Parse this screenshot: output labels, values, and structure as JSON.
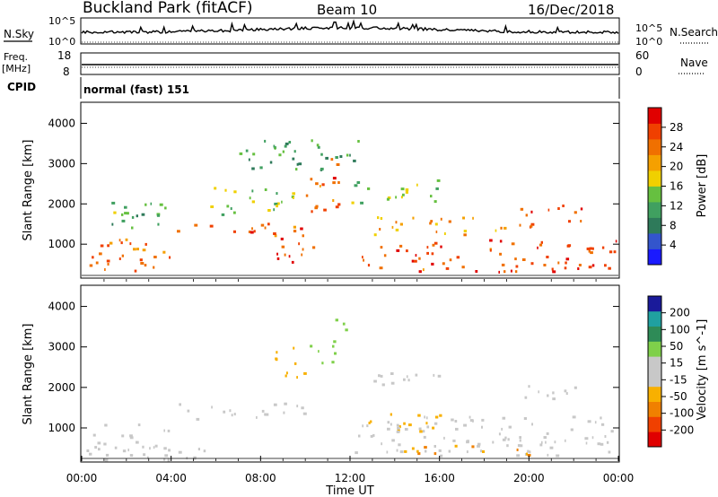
{
  "header": {
    "station": "Buckland Park (fitACF)",
    "beam": "Beam 10",
    "date": "16/Dec/2018"
  },
  "panels": {
    "nsky_label": "N.Sky",
    "nsky_ticks": [
      "10^5",
      "10^0"
    ],
    "nsearch_label": "N.Search",
    "nsearch_ticks": [
      "10^5",
      "10^0"
    ],
    "freq_label": "Freq.",
    "freq_unit": "[MHz]",
    "freq_ticks": [
      "18",
      "8"
    ],
    "nave_label": "Nave",
    "nave_ticks": [
      "60",
      "0"
    ],
    "cpid_label": "CPID",
    "cpid_text": "normal (fast) 151"
  },
  "colors": {
    "power": [
      "#1a1aff",
      "#3355cc",
      "#2e7a5a",
      "#40a060",
      "#66c040",
      "#f0d000",
      "#f5a000",
      "#f07000",
      "#f04000",
      "#e00000"
    ],
    "velocity": [
      "#e00000",
      "#f04000",
      "#f08000",
      "#f8b000",
      "#c8c8c8",
      "#c8c8c8",
      "#7fd04a",
      "#2e8b57",
      "#20a0a0",
      "#1a1a9a"
    ],
    "background": "#ffffff"
  },
  "chart_data": [
    {
      "type": "heatmap",
      "panel": "power",
      "ylabel": "Slant Range [km]",
      "y_ticks": [
        "1000",
        "2000",
        "3000",
        "4000"
      ],
      "ylim": [
        180,
        4500
      ],
      "xlim": [
        "00:00",
        "24:00"
      ],
      "colorbar": {
        "label": "Power [dB]",
        "ticks": [
          "4",
          "8",
          "12",
          "16",
          "20",
          "24",
          "28"
        ],
        "range": [
          0,
          32
        ]
      },
      "bands": [
        {
          "t0": 0.0,
          "t1": 4.0,
          "r0": 250,
          "r1": 1150,
          "v": 24
        },
        {
          "t0": 1.0,
          "t1": 4.5,
          "r0": 1400,
          "r1": 2100,
          "v": 12
        },
        {
          "t0": 4.0,
          "t1": 10.0,
          "r0": 1200,
          "r1": 1500,
          "v": 25
        },
        {
          "t0": 5.5,
          "t1": 9.5,
          "r0": 1700,
          "r1": 2400,
          "v": 15
        },
        {
          "t0": 8.5,
          "t1": 10.5,
          "r0": 500,
          "r1": 1400,
          "v": 27
        },
        {
          "t0": 10.0,
          "t1": 11.5,
          "r0": 1800,
          "r1": 3300,
          "v": 26
        },
        {
          "t0": 12.5,
          "t1": 24.0,
          "r0": 300,
          "r1": 1100,
          "v": 26
        },
        {
          "t0": 13.0,
          "t1": 19.0,
          "r0": 1200,
          "r1": 1700,
          "v": 22
        },
        {
          "t0": 19.5,
          "t1": 22.5,
          "r0": 1400,
          "r1": 2000,
          "v": 26
        },
        {
          "t0": 12.0,
          "t1": 16.0,
          "r0": 2000,
          "r1": 2600,
          "v": 14
        },
        {
          "t0": 7.0,
          "t1": 12.5,
          "r0": 2800,
          "r1": 3600,
          "v": 11
        }
      ]
    },
    {
      "type": "heatmap",
      "panel": "velocity",
      "ylabel": "Slant Range [km]",
      "xlabel": "Time UT",
      "x_ticks": [
        "00:00",
        "04:00",
        "08:00",
        "12:00",
        "16:00",
        "20:00",
        "00:00"
      ],
      "y_ticks": [
        "1000",
        "2000",
        "3000",
        "4000"
      ],
      "ylim": [
        180,
        4500
      ],
      "xlim": [
        "00:00",
        "24:00"
      ],
      "colorbar": {
        "label": "Velocity [m s^-1]",
        "ticks": [
          "-200",
          "-100",
          "-50",
          "-15",
          "15",
          "50",
          "100",
          "200"
        ],
        "range": [
          -250,
          250
        ]
      },
      "bands": [
        {
          "t0": 0.0,
          "t1": 4.0,
          "r0": 250,
          "r1": 1100,
          "v": 0
        },
        {
          "t0": 0.0,
          "t1": 6.0,
          "r0": 200,
          "r1": 500,
          "v": 30
        },
        {
          "t0": 4.0,
          "t1": 10.0,
          "r0": 1200,
          "r1": 1600,
          "v": 0
        },
        {
          "t0": 8.5,
          "t1": 10.0,
          "r0": 2200,
          "r1": 3000,
          "v": -70
        },
        {
          "t0": 10.0,
          "t1": 11.5,
          "r0": 2600,
          "r1": 3200,
          "v": 60
        },
        {
          "t0": 11.0,
          "t1": 12.0,
          "r0": 3300,
          "r1": 3700,
          "v": 80
        },
        {
          "t0": 12.5,
          "t1": 16.0,
          "r0": 900,
          "r1": 1400,
          "v": -70
        },
        {
          "t0": 12.0,
          "t1": 24.0,
          "r0": 300,
          "r1": 1300,
          "v": 0
        },
        {
          "t0": 13.0,
          "t1": 16.0,
          "r0": 1900,
          "r1": 2400,
          "v": 0
        },
        {
          "t0": 19.5,
          "t1": 22.5,
          "r0": 1700,
          "r1": 2100,
          "v": 20
        },
        {
          "t0": 14.0,
          "t1": 20.0,
          "r0": 300,
          "r1": 550,
          "v": -90
        }
      ]
    }
  ]
}
